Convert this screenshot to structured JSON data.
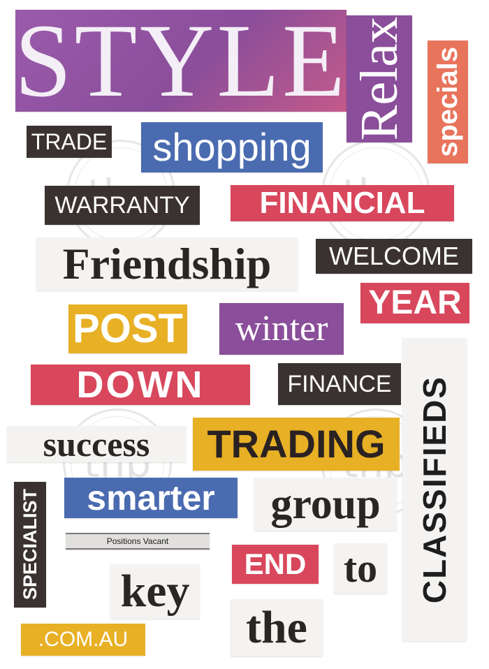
{
  "clippings": {
    "style": "STYLE",
    "relax": "Relax",
    "specials": "specials",
    "trade": "TRADE",
    "shopping": "shopping",
    "warranty": "WARRANTY",
    "financial": "FINANCIAL",
    "friendship": "Friendship",
    "welcome": "WELCOME",
    "year": "YEAR",
    "post": "POST",
    "winter": "winter",
    "down": "DOWN",
    "finance": "FINANCE",
    "classifieds": "CLASSIFIEDS",
    "success": "success",
    "trading": "TRADING",
    "specialist": "SPECIALIST",
    "smarter": "smarter",
    "group": "group",
    "positions_vacant": "Positions Vacant",
    "end": "END",
    "to": "to",
    "key": "key",
    "the": "the",
    "com_au": ".COM.AU"
  },
  "watermark": {
    "text": "thp"
  },
  "colors": {
    "purple": "#8a4e9a",
    "dark": "#3a3230",
    "blue": "#4a6bb0",
    "red": "#d8475c",
    "orange": "#e8745c",
    "yellow": "#e8b025",
    "paper": "#f4f3f1"
  }
}
